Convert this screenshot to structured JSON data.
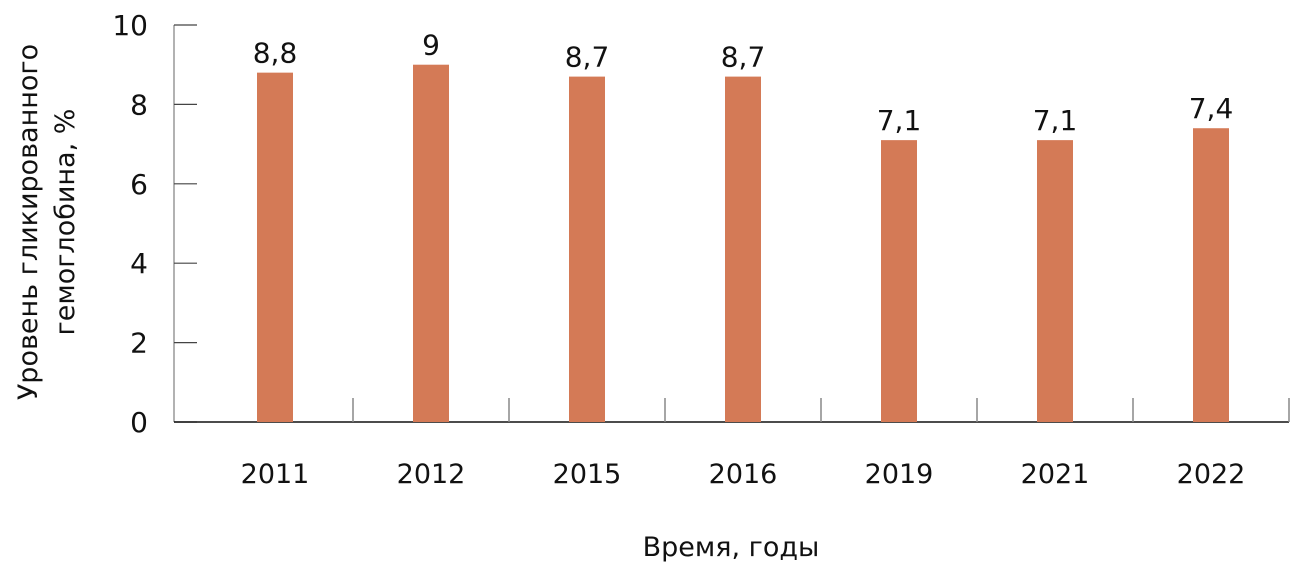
{
  "chart_data": {
    "type": "bar",
    "categories": [
      "2011",
      "2012",
      "2015",
      "2016",
      "2019",
      "2021",
      "2022"
    ],
    "values": [
      8.8,
      9,
      8.7,
      8.7,
      7.1,
      7.1,
      7.4
    ],
    "data_labels": [
      "8,8",
      "9",
      "8,7",
      "8,7",
      "7,1",
      "7,1",
      "7,4"
    ],
    "title": "",
    "xlabel": "Время, годы",
    "ylabel_lines": [
      "Уровень гликированного",
      "гемоглобина, %"
    ],
    "ylim": [
      0,
      10
    ],
    "yticks": [
      "0",
      "2",
      "4",
      "6",
      "8",
      "10"
    ],
    "grid": false,
    "legend": "none",
    "bar_color": "#d47a56"
  }
}
